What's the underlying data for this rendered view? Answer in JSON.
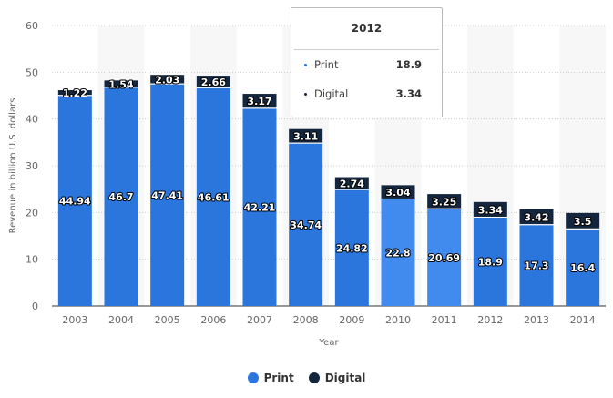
{
  "chart_data": {
    "type": "bar",
    "stacked": true,
    "categories": [
      "2003",
      "2004",
      "2005",
      "2006",
      "2007",
      "2008",
      "2009",
      "2010",
      "2011",
      "2012",
      "2013",
      "2014"
    ],
    "series": [
      {
        "name": "Print",
        "color": "#2a76dc",
        "values": [
          44.94,
          46.7,
          47.41,
          46.61,
          42.21,
          34.74,
          24.82,
          22.8,
          20.69,
          18.9,
          17.3,
          16.4
        ]
      },
      {
        "name": "Digital",
        "color": "#14263d",
        "values": [
          1.22,
          1.54,
          2.03,
          2.66,
          3.17,
          3.11,
          2.74,
          3.04,
          3.25,
          3.34,
          3.42,
          3.5
        ]
      }
    ],
    "highlighted_categories": [
      "2010",
      "2011"
    ],
    "highlight_color": "#418bee",
    "xlabel": "Year",
    "ylabel": "Revenue in billion U.S. dollars",
    "ylim": [
      0,
      60
    ],
    "yticks": [
      0,
      10,
      20,
      30,
      40,
      50,
      60
    ],
    "grid": true,
    "legend": "bottom-center"
  },
  "tooltip": {
    "title": "2012",
    "rows": [
      {
        "label": "Print",
        "value": "18.9",
        "color": "#2a76dc"
      },
      {
        "label": "Digital",
        "value": "3.34",
        "color": "#14263d"
      }
    ]
  }
}
